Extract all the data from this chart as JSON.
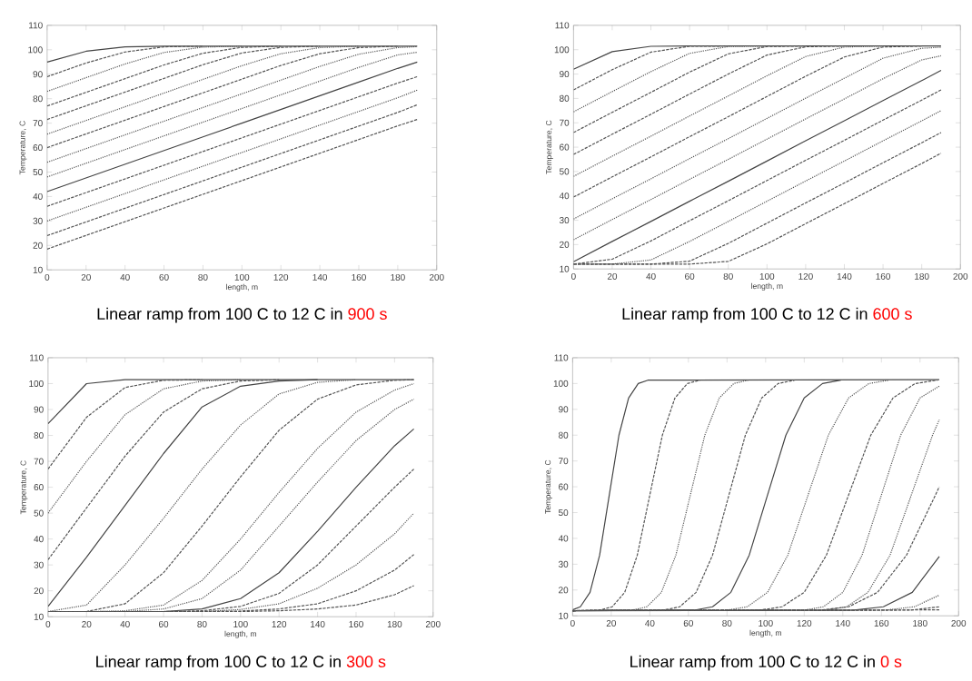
{
  "chart_data": [
    {
      "type": "line",
      "title": "Linear ramp from 100 C to 12 C in",
      "subtitle": "900 s",
      "xlabel": "length, m",
      "ylabel": "Temperature, C",
      "xlim": [
        0,
        200
      ],
      "ylim": [
        10,
        110
      ],
      "xticks": [
        0,
        20,
        40,
        60,
        80,
        100,
        120,
        140,
        160,
        180,
        200
      ],
      "yticks": [
        10,
        20,
        30,
        40,
        50,
        60,
        70,
        80,
        90,
        100,
        110
      ],
      "x": [
        0,
        20,
        40,
        60,
        80,
        100,
        120,
        140,
        160,
        180,
        190
      ],
      "series": [
        {
          "color": "#444444",
          "line_style": "solid",
          "values": [
            95,
            99.4,
            101.2,
            101.5,
            101.5,
            101.5,
            101.5,
            101.5,
            101.5,
            101.5,
            101.5
          ]
        },
        {
          "color": "#555555",
          "line_style": "dashed",
          "values": [
            89,
            94.6,
            99.1,
            101.2,
            101.5,
            null,
            null,
            null,
            null,
            null,
            null
          ]
        },
        {
          "color": "#555555",
          "line_style": "dotted",
          "values": [
            83,
            88.6,
            94.2,
            98.9,
            101.1,
            101.5,
            null,
            null,
            null,
            null,
            null
          ]
        },
        {
          "color": "#555555",
          "line_style": "dashed",
          "values": [
            77,
            82.6,
            88.2,
            93.8,
            98.6,
            101,
            101.5,
            null,
            null,
            null,
            null
          ]
        },
        {
          "color": "#555555",
          "line_style": "dashed",
          "values": [
            71.5,
            77.1,
            82.7,
            88.3,
            93.9,
            98.7,
            101,
            101.5,
            null,
            null,
            null
          ]
        },
        {
          "color": "#555555",
          "line_style": "dotted",
          "values": [
            65.5,
            71.1,
            76.7,
            82.3,
            87.9,
            93.5,
            98.4,
            100.9,
            101.5,
            null,
            null
          ]
        },
        {
          "color": "#555555",
          "line_style": "dashed",
          "values": [
            60,
            65.6,
            71.2,
            76.8,
            82.4,
            88,
            93.6,
            98.4,
            100.9,
            101.5,
            null
          ]
        },
        {
          "color": "#555555",
          "line_style": "dotted",
          "values": [
            54,
            59.6,
            65.2,
            70.8,
            76.4,
            82,
            87.6,
            93.2,
            98.2,
            100.9,
            101.3
          ]
        },
        {
          "color": "#555555",
          "line_style": "dotted",
          "values": [
            48,
            53.6,
            59.2,
            64.8,
            70.4,
            76,
            81.6,
            87.2,
            92.8,
            97.9,
            99
          ]
        },
        {
          "color": "#444444",
          "line_style": "solid",
          "values": [
            42,
            47.6,
            53.2,
            58.8,
            64.4,
            70,
            75.6,
            81.2,
            86.8,
            92.4,
            95
          ]
        },
        {
          "color": "#555555",
          "line_style": "dashed",
          "values": [
            36,
            41.6,
            47.2,
            52.8,
            58.4,
            64,
            69.6,
            75.2,
            80.8,
            86.4,
            89
          ]
        },
        {
          "color": "#555555",
          "line_style": "dotted",
          "values": [
            30,
            35.6,
            41.2,
            46.8,
            52.4,
            58,
            63.6,
            69.2,
            74.8,
            80.4,
            83.5
          ]
        },
        {
          "color": "#555555",
          "line_style": "dashed",
          "values": [
            24,
            29.6,
            35.2,
            40.8,
            46.4,
            52,
            57.6,
            63.2,
            68.8,
            74.4,
            77.5
          ]
        },
        {
          "color": "#555555",
          "line_style": "dashed",
          "values": [
            18.5,
            24.1,
            29.7,
            35.3,
            40.9,
            46.5,
            52.1,
            57.7,
            63.3,
            68.9,
            71.5
          ]
        }
      ]
    },
    {
      "type": "line",
      "title": "Linear ramp from 100 C to 12 C in",
      "subtitle": "600 s",
      "xlabel": "length, m",
      "ylabel": "Temperature, C",
      "xlim": [
        0,
        200
      ],
      "ylim": [
        10,
        110
      ],
      "xticks": [
        0,
        20,
        40,
        60,
        80,
        100,
        120,
        140,
        160,
        180,
        200
      ],
      "yticks": [
        10,
        20,
        30,
        40,
        50,
        60,
        70,
        80,
        90,
        100,
        110
      ],
      "x": [
        0,
        20,
        40,
        60,
        80,
        100,
        120,
        140,
        160,
        180,
        190
      ],
      "series": [
        {
          "color": "#444444",
          "line_style": "solid",
          "values": [
            92,
            99.2,
            101.4,
            101.5,
            101.5,
            101.5,
            101.5,
            101.5,
            101.5,
            101.5,
            101.5
          ]
        },
        {
          "color": "#555555",
          "line_style": "dashed",
          "values": [
            83.5,
            91.8,
            99,
            101.4,
            101.5,
            null,
            null,
            null,
            null,
            null,
            null
          ]
        },
        {
          "color": "#555555",
          "line_style": "dotted",
          "values": [
            74.5,
            82.8,
            91,
            98.5,
            101.3,
            101.5,
            null,
            null,
            null,
            null,
            null
          ]
        },
        {
          "color": "#555555",
          "line_style": "dashed",
          "values": [
            66,
            74.3,
            82.5,
            90.8,
            98.3,
            101.3,
            101.5,
            null,
            null,
            null,
            null
          ]
        },
        {
          "color": "#555555",
          "line_style": "dashed",
          "values": [
            57,
            65.3,
            73.5,
            81.8,
            90,
            97.8,
            101.2,
            101.5,
            null,
            null,
            null
          ]
        },
        {
          "color": "#555555",
          "line_style": "dotted",
          "values": [
            48,
            56.3,
            64.5,
            72.8,
            81,
            89.3,
            97.2,
            101.1,
            101.5,
            null,
            null
          ]
        },
        {
          "color": "#555555",
          "line_style": "dashed",
          "values": [
            39.5,
            47.8,
            56,
            64.3,
            72.5,
            80.8,
            89.1,
            97,
            101.1,
            101.5,
            null
          ]
        },
        {
          "color": "#555555",
          "line_style": "dotted",
          "values": [
            30.5,
            38.8,
            47,
            55.3,
            63.5,
            71.8,
            80.1,
            88.3,
            96.5,
            100.6,
            101
          ]
        },
        {
          "color": "#555555",
          "line_style": "dotted",
          "values": [
            22,
            30.3,
            38.5,
            46.8,
            55,
            63.3,
            71.6,
            79.8,
            88.1,
            95.8,
            97.5
          ]
        },
        {
          "color": "#444444",
          "line_style": "solid",
          "values": [
            13,
            21.3,
            29.5,
            37.8,
            46,
            54.3,
            62.6,
            70.8,
            79.1,
            87.3,
            91.5
          ]
        },
        {
          "color": "#555555",
          "line_style": "dashed",
          "values": [
            12,
            14,
            21.5,
            29.8,
            38,
            46.3,
            54.6,
            62.8,
            71.1,
            79.3,
            83.5
          ]
        },
        {
          "color": "#555555",
          "line_style": "dotted",
          "values": [
            12,
            12,
            13.7,
            21.3,
            29.5,
            37.8,
            46.1,
            54.3,
            62.6,
            70.8,
            75
          ]
        },
        {
          "color": "#555555",
          "line_style": "dashed",
          "values": [
            12,
            12,
            12,
            13.2,
            20.5,
            28.8,
            37.1,
            45.3,
            53.6,
            61.8,
            66
          ]
        },
        {
          "color": "#555555",
          "line_style": "dashed",
          "values": [
            12,
            12,
            12,
            12,
            13.1,
            20.3,
            28.6,
            36.8,
            45.1,
            53.3,
            57.5
          ]
        }
      ]
    },
    {
      "type": "line",
      "title": "Linear ramp from 100 C to 12 C in",
      "subtitle": "300 s",
      "xlabel": "length, m",
      "ylabel": "Temperature, C",
      "xlim": [
        0,
        200
      ],
      "ylim": [
        10,
        110
      ],
      "xticks": [
        0,
        20,
        40,
        60,
        80,
        100,
        120,
        140,
        160,
        180,
        200
      ],
      "yticks": [
        10,
        20,
        30,
        40,
        50,
        60,
        70,
        80,
        90,
        100,
        110
      ],
      "x": [
        0,
        20,
        40,
        60,
        80,
        100,
        120,
        140,
        160,
        180,
        190
      ],
      "series": [
        {
          "color": "#444444",
          "line_style": "solid",
          "values": [
            84.5,
            100,
            101.5,
            101.5,
            101.5,
            101.5,
            101.5,
            101.5,
            101.5,
            101.5,
            101.5
          ]
        },
        {
          "color": "#555555",
          "line_style": "dashed",
          "values": [
            67,
            87,
            98.5,
            101.3,
            101.5,
            null,
            null,
            null,
            null,
            null,
            null
          ]
        },
        {
          "color": "#555555",
          "line_style": "dotted",
          "values": [
            50,
            70,
            88,
            98,
            101,
            101.5,
            null,
            null,
            null,
            null,
            null
          ]
        },
        {
          "color": "#555555",
          "line_style": "dashed",
          "values": [
            32,
            52,
            72,
            89,
            98,
            101,
            101.5,
            null,
            null,
            null,
            null
          ]
        },
        {
          "color": "#444444",
          "line_style": "solid",
          "values": [
            14,
            33,
            53,
            73,
            91,
            99,
            101,
            101.5,
            null,
            null,
            null
          ]
        },
        {
          "color": "#555555",
          "line_style": "dotted",
          "values": [
            12,
            14.5,
            30,
            48,
            67,
            84,
            96,
            100.5,
            101.5,
            null,
            null
          ]
        },
        {
          "color": "#555555",
          "line_style": "dashed",
          "values": [
            12,
            12,
            15,
            27,
            45,
            64,
            82,
            94,
            99.5,
            101.3,
            101.5
          ]
        },
        {
          "color": "#555555",
          "line_style": "dotted",
          "values": [
            12,
            12,
            12.3,
            14.5,
            24,
            40,
            58,
            75,
            89,
            97.5,
            100
          ]
        },
        {
          "color": "#555555",
          "line_style": "dotted",
          "values": [
            12,
            12,
            12,
            13,
            17,
            28,
            45,
            62,
            78,
            90,
            94
          ]
        },
        {
          "color": "#444444",
          "line_style": "solid",
          "values": [
            12,
            12,
            12,
            12,
            13,
            17,
            27,
            43,
            60,
            76,
            82.5
          ]
        },
        {
          "color": "#555555",
          "line_style": "dashed",
          "values": [
            12,
            12,
            12,
            12,
            12.3,
            14,
            19,
            30,
            45,
            60,
            67
          ]
        },
        {
          "color": "#555555",
          "line_style": "dotted",
          "values": [
            12,
            12,
            12,
            12,
            12,
            12.8,
            15,
            21,
            30,
            42,
            50
          ]
        },
        {
          "color": "#555555",
          "line_style": "dashed",
          "values": [
            12,
            12,
            12,
            12,
            12,
            12.2,
            13,
            15,
            20,
            28,
            34
          ]
        },
        {
          "color": "#555555",
          "line_style": "dashed",
          "values": [
            12,
            12,
            12,
            12,
            12,
            12,
            12.3,
            13,
            14.5,
            18.5,
            22
          ]
        }
      ]
    },
    {
      "type": "line",
      "title": "Linear ramp from 100 C to 12 C in",
      "subtitle": "0 s",
      "xlabel": "length, m",
      "ylabel": "Temperature, C",
      "xlim": [
        0,
        200
      ],
      "ylim": [
        10,
        110
      ],
      "xticks": [
        0,
        20,
        40,
        60,
        80,
        100,
        120,
        140,
        160,
        180,
        200
      ],
      "yticks": [
        10,
        20,
        30,
        40,
        50,
        60,
        70,
        80,
        90,
        100,
        110
      ],
      "series": [
        {
          "color": "#444444",
          "line_style": "solid",
          "x": [
            0,
            4,
            9,
            14,
            19,
            24,
            29,
            34,
            39,
            190
          ],
          "values": [
            12.3,
            13.5,
            19.1,
            33.5,
            56.8,
            80,
            94.4,
            100,
            101.3,
            101.5
          ]
        },
        {
          "color": "#555555",
          "line_style": "dashed",
          "x": [
            0,
            14,
            20.5,
            27,
            33.5,
            40,
            46.5,
            53,
            59.5,
            66
          ],
          "values": [
            12,
            12.2,
            13.5,
            19.1,
            33.5,
            56.8,
            80,
            94.4,
            100,
            101.3
          ]
        },
        {
          "color": "#555555",
          "line_style": "dotted",
          "x": [
            0,
            31,
            38.5,
            46,
            53.5,
            61,
            68.5,
            76,
            83.5,
            91
          ],
          "values": [
            12,
            12.2,
            13.5,
            19.1,
            33.5,
            56.8,
            80,
            94.4,
            100,
            101.3
          ]
        },
        {
          "color": "#555555",
          "line_style": "dashed",
          "x": [
            0,
            47,
            55.5,
            64,
            72.5,
            81,
            89.5,
            98,
            106.5,
            115
          ],
          "values": [
            12,
            12.2,
            13.5,
            19.1,
            33.5,
            56.8,
            80,
            94.4,
            100,
            101.3
          ]
        },
        {
          "color": "#444444",
          "line_style": "solid",
          "x": [
            0,
            63,
            72.5,
            82,
            91.5,
            101,
            110.5,
            120,
            129.5,
            139
          ],
          "values": [
            12,
            12.2,
            13.5,
            19.1,
            33.5,
            56.8,
            80,
            94.4,
            100,
            101.3
          ]
        },
        {
          "color": "#555555",
          "line_style": "dotted",
          "x": [
            0,
            80,
            90.5,
            101,
            111.5,
            122,
            132.5,
            143,
            153.5,
            164
          ],
          "values": [
            12,
            12.2,
            13.5,
            19.1,
            33.5,
            56.8,
            80,
            94.4,
            100,
            101.3
          ]
        },
        {
          "color": "#555555",
          "line_style": "dashed",
          "x": [
            0,
            97,
            108.5,
            120,
            131.5,
            143,
            154.5,
            166,
            177.5,
            189
          ],
          "values": [
            12,
            12.2,
            13.5,
            19.1,
            33.5,
            56.8,
            80,
            94.4,
            100,
            101.3
          ]
        },
        {
          "color": "#555555",
          "line_style": "dotted",
          "x": [
            0,
            120,
            130,
            140,
            150,
            160,
            170,
            180,
            190
          ],
          "values": [
            12,
            12.2,
            13.5,
            19.1,
            33.5,
            56.8,
            80,
            94.4,
            99
          ]
        },
        {
          "color": "#555555",
          "line_style": "dotted",
          "x": [
            0,
            131,
            142,
            153,
            164.5,
            175.5,
            186.5,
            190
          ],
          "values": [
            12,
            12.2,
            13.5,
            19.1,
            33.5,
            56.8,
            80,
            86
          ]
        },
        {
          "color": "#555555",
          "line_style": "dashed",
          "x": [
            0,
            128,
            143,
            158,
            173,
            188,
            190
          ],
          "values": [
            12,
            12.2,
            13.5,
            19.1,
            33.5,
            56.8,
            60
          ]
        },
        {
          "color": "#444444",
          "line_style": "solid",
          "x": [
            0,
            146,
            161,
            176,
            190
          ],
          "values": [
            12,
            12.2,
            13.5,
            19.1,
            33
          ]
        },
        {
          "color": "#555555",
          "line_style": "dotted",
          "x": [
            0,
            162,
            177,
            190
          ],
          "values": [
            12,
            12.2,
            13.5,
            18
          ]
        },
        {
          "color": "#555555",
          "line_style": "dashed",
          "x": [
            0,
            175,
            190
          ],
          "values": [
            12,
            12.2,
            13.5
          ]
        },
        {
          "color": "#555555",
          "line_style": "dashed",
          "x": [
            0,
            190
          ],
          "values": [
            12,
            12.3
          ]
        }
      ]
    }
  ]
}
